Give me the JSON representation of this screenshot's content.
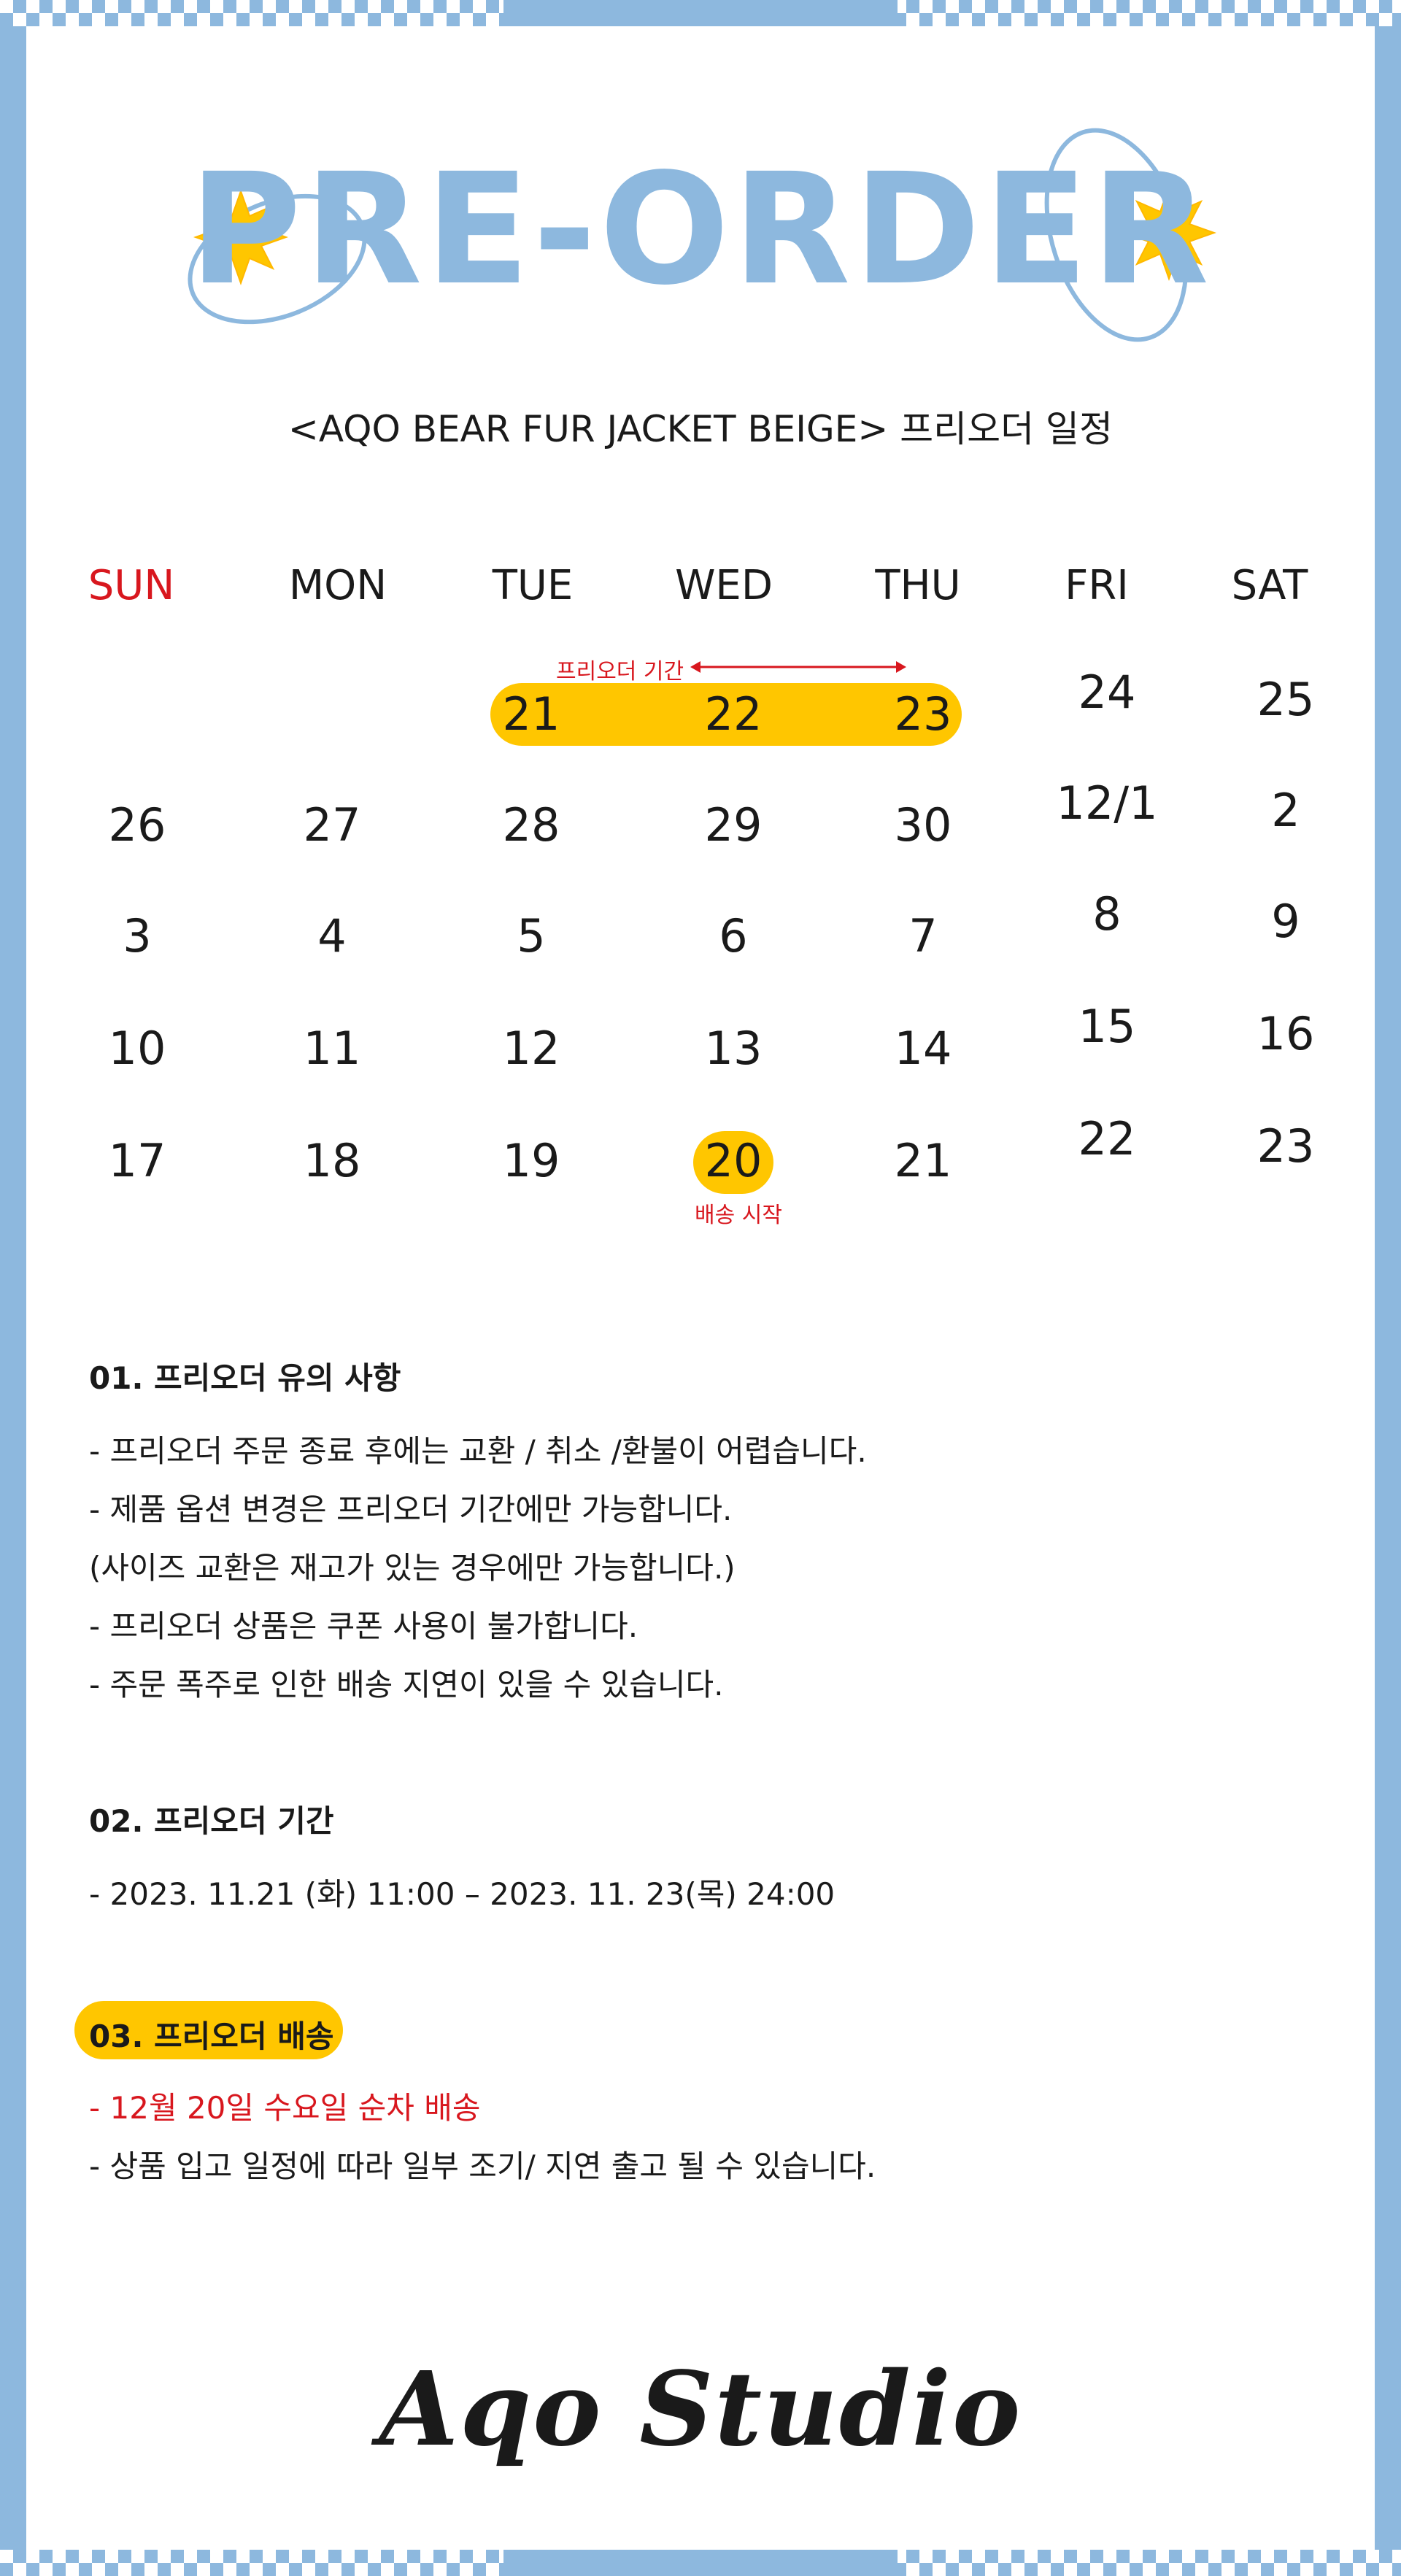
{
  "hero": {
    "title": "PRE-ORDER",
    "subtitle": "<AQO BEAR FUR JACKET BEIGE> 프리오더 일정"
  },
  "colors": {
    "accent_blue": "#8db8de",
    "highlight_yellow": "#ffc600",
    "red": "#d8171e",
    "text": "#1a1a1a"
  },
  "calendar": {
    "weekdays": [
      "SUN",
      "MON",
      "TUE",
      "WED",
      "THU",
      "FRI",
      "SAT"
    ],
    "weeks": [
      [
        "",
        "",
        "21",
        "22",
        "23",
        "24",
        "25"
      ],
      [
        "26",
        "27",
        "28",
        "29",
        "30",
        "12/1",
        "2"
      ],
      [
        "3",
        "4",
        "5",
        "6",
        "7",
        "8",
        "9"
      ],
      [
        "10",
        "11",
        "12",
        "13",
        "14",
        "15",
        "16"
      ],
      [
        "17",
        "18",
        "19",
        "20",
        "21",
        "22",
        "23"
      ]
    ],
    "preorder_label": "프리오더 기간",
    "ship_label": "배송 시작"
  },
  "section1": {
    "heading": "01. 프리오더 유의 사항",
    "lines": [
      "- 프리오더 주문 종료 후에는 교환 / 취소 /환불이 어렵습니다.",
      "- 제품 옵션 변경은 프리오더 기간에만 가능합니다.",
      "(사이즈 교환은 재고가 있는 경우에만 가능합니다.)",
      "- 프리오더 상품은 쿠폰 사용이 불가합니다.",
      "- 주문 폭주로 인한 배송 지연이 있을 수 있습니다."
    ]
  },
  "section2": {
    "heading": "02. 프리오더 기간",
    "line": "- 2023. 11.21 (화) 11:00 – 2023. 11. 23(목) 24:00"
  },
  "section3": {
    "heading": "03. 프리오더 배송",
    "line_red": "- 12월 20일 수요일 순차 배송",
    "line": "- 상품 입고 일정에 따라 일부 조기/ 지연 출고 될 수 있습니다."
  },
  "footer": {
    "logo": "Aqo Studio"
  }
}
